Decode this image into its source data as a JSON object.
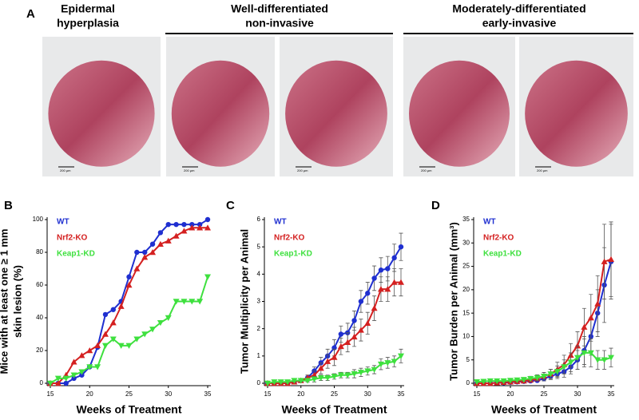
{
  "panel_a": {
    "label": "A",
    "headings": [
      [
        "Epidermal",
        "hyperplasia"
      ],
      [
        "Well-differentiated",
        "non-invasive"
      ],
      [
        "Moderately-differentiated",
        "early-invasive"
      ]
    ],
    "scale_bar_label": "200 µm"
  },
  "chart_data": [
    {
      "type": "line",
      "panel": "B",
      "xlabel": "Weeks of Treatment",
      "ylabel": [
        "Mice with at least one ≥ 1 mm",
        "skin lesion (%)"
      ],
      "x": [
        15,
        16,
        17,
        18,
        19,
        20,
        21,
        22,
        23,
        24,
        25,
        26,
        27,
        28,
        29,
        30,
        31,
        32,
        33,
        34,
        35
      ],
      "xlim": [
        15,
        35
      ],
      "xticks": [
        15,
        20,
        25,
        30,
        35
      ],
      "ylim": [
        0,
        100
      ],
      "yticks": [
        0,
        20,
        40,
        60,
        80,
        100
      ],
      "legend": "upper left",
      "series": [
        {
          "name": "WT",
          "color": "#1f2fd0",
          "marker": "circle",
          "values": [
            0,
            0,
            0,
            3,
            5,
            10,
            22,
            42,
            45,
            50,
            65,
            80,
            80,
            85,
            92,
            97,
            97,
            97,
            97,
            97,
            100
          ]
        },
        {
          "name": "Nrf2-KO",
          "color": "#d42020",
          "marker": "triangle-up",
          "values": [
            0,
            0,
            5,
            13,
            17,
            20,
            23,
            30,
            37,
            47,
            60,
            70,
            77,
            80,
            85,
            87,
            90,
            93,
            95,
            95,
            95
          ]
        },
        {
          "name": "Keap1-KD",
          "color": "#3ee03e",
          "marker": "triangle-down",
          "values": [
            0,
            3,
            3,
            5,
            7,
            10,
            10,
            23,
            27,
            23,
            23,
            27,
            30,
            33,
            37,
            40,
            50,
            50,
            50,
            50,
            65
          ]
        }
      ]
    },
    {
      "type": "line",
      "panel": "C",
      "xlabel": "Weeks of Treatment",
      "ylabel": [
        "Tumor Multiplicity per Animal"
      ],
      "x": [
        15,
        16,
        17,
        18,
        19,
        20,
        21,
        22,
        23,
        24,
        25,
        26,
        27,
        28,
        29,
        30,
        31,
        32,
        33,
        34,
        35
      ],
      "xlim": [
        15,
        35
      ],
      "xticks": [
        15,
        20,
        25,
        30,
        35
      ],
      "ylim": [
        0,
        6
      ],
      "yticks": [
        0,
        1,
        2,
        3,
        4,
        5,
        6
      ],
      "legend": "upper left",
      "series": [
        {
          "name": "WT",
          "color": "#1f2fd0",
          "marker": "circle",
          "values": [
            0,
            0,
            0,
            0,
            0.05,
            0.1,
            0.2,
            0.45,
            0.75,
            1,
            1.3,
            1.8,
            1.85,
            2.3,
            3,
            3.3,
            3.85,
            4.15,
            4.2,
            4.6,
            5
          ],
          "errors": [
            0,
            0,
            0,
            0,
            0.05,
            0.05,
            0.1,
            0.15,
            0.2,
            0.25,
            0.3,
            0.3,
            0.35,
            0.35,
            0.4,
            0.4,
            0.45,
            0.45,
            0.45,
            0.5,
            0.5
          ]
        },
        {
          "name": "Nrf2-KO",
          "color": "#d42020",
          "marker": "triangle-up",
          "values": [
            0,
            0,
            0,
            0,
            0.05,
            0.1,
            0.2,
            0.3,
            0.55,
            0.8,
            0.95,
            1.35,
            1.5,
            1.7,
            1.95,
            2.2,
            2.75,
            3.45,
            3.45,
            3.7,
            3.7
          ],
          "errors": [
            0,
            0,
            0,
            0,
            0.05,
            0.05,
            0.1,
            0.15,
            0.2,
            0.25,
            0.3,
            0.3,
            0.35,
            0.35,
            0.4,
            0.4,
            0.45,
            0.45,
            0.45,
            0.5,
            0.5
          ]
        },
        {
          "name": "Keap1-KD",
          "color": "#3ee03e",
          "marker": "triangle-down",
          "values": [
            0,
            0.05,
            0.05,
            0.05,
            0.1,
            0.1,
            0.1,
            0.15,
            0.2,
            0.2,
            0.25,
            0.3,
            0.3,
            0.35,
            0.4,
            0.45,
            0.5,
            0.7,
            0.75,
            0.8,
            1
          ],
          "errors": [
            0,
            0.05,
            0.05,
            0.05,
            0.05,
            0.05,
            0.05,
            0.1,
            0.1,
            0.1,
            0.1,
            0.1,
            0.1,
            0.15,
            0.15,
            0.15,
            0.15,
            0.2,
            0.2,
            0.2,
            0.25
          ]
        }
      ]
    },
    {
      "type": "line",
      "panel": "D",
      "xlabel": "Weeks of Treatment",
      "ylabel": [
        "Tumor Burden per Animal (mm³)"
      ],
      "x": [
        15,
        16,
        17,
        18,
        19,
        20,
        21,
        22,
        23,
        24,
        25,
        26,
        27,
        28,
        29,
        30,
        31,
        32,
        33,
        34,
        35
      ],
      "xlim": [
        15,
        35
      ],
      "xticks": [
        15,
        20,
        25,
        30,
        35
      ],
      "ylim": [
        0,
        35
      ],
      "yticks": [
        0,
        5,
        10,
        15,
        20,
        25,
        30,
        35
      ],
      "legend": "upper left",
      "series": [
        {
          "name": "WT",
          "color": "#1f2fd0",
          "marker": "circle",
          "values": [
            0,
            0,
            0,
            0.1,
            0.1,
            0.2,
            0.3,
            0.4,
            0.5,
            0.6,
            1,
            1.5,
            2,
            2.5,
            3.5,
            5,
            7,
            10,
            15,
            21,
            26
          ],
          "errors": [
            0,
            0,
            0,
            0.1,
            0.1,
            0.1,
            0.2,
            0.2,
            0.3,
            0.3,
            0.5,
            0.7,
            1,
            1.2,
            1.5,
            2,
            3,
            4,
            5,
            8,
            8
          ]
        },
        {
          "name": "Nrf2-KO",
          "color": "#d42020",
          "marker": "triangle-up",
          "values": [
            0,
            0,
            0,
            0.1,
            0.2,
            0.3,
            0.4,
            0.5,
            0.7,
            1,
            1.5,
            2,
            3,
            4,
            6,
            8,
            12,
            14,
            17,
            26,
            26.5
          ],
          "errors": [
            0,
            0,
            0,
            0.1,
            0.1,
            0.2,
            0.2,
            0.3,
            0.4,
            0.5,
            0.8,
            1,
            1.5,
            2,
            2.5,
            3,
            4,
            5,
            6,
            8,
            8
          ]
        },
        {
          "name": "Keap1-KD",
          "color": "#3ee03e",
          "marker": "triangle-down",
          "values": [
            0.3,
            0.4,
            0.5,
            0.5,
            0.5,
            0.6,
            0.7,
            0.8,
            1,
            1.2,
            1.5,
            2,
            2.5,
            3.5,
            4.5,
            5.5,
            6.5,
            6.5,
            5,
            5,
            5.5
          ],
          "errors": [
            0.2,
            0.2,
            0.3,
            0.3,
            0.3,
            0.3,
            0.4,
            0.4,
            0.5,
            0.6,
            0.8,
            1,
            1.2,
            1.5,
            2,
            2.5,
            3,
            3,
            2,
            2,
            2
          ]
        }
      ]
    }
  ]
}
